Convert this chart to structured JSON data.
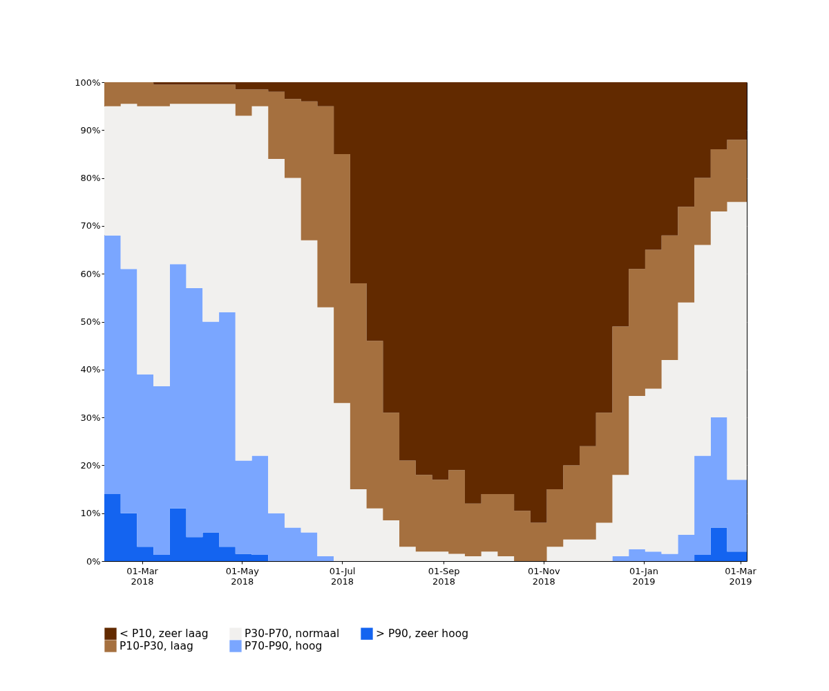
{
  "chart_data": {
    "type": "area",
    "stacked": true,
    "grid": true,
    "legend": "bottom",
    "x": [
      "2018-02-06",
      "2018-02-16",
      "2018-02-26",
      "2018-03-08",
      "2018-03-18",
      "2018-03-28",
      "2018-04-07",
      "2018-04-17",
      "2018-04-27",
      "2018-05-07",
      "2018-05-17",
      "2018-05-27",
      "2018-06-06",
      "2018-06-16",
      "2018-06-26",
      "2018-07-06",
      "2018-07-16",
      "2018-07-26",
      "2018-08-05",
      "2018-08-15",
      "2018-08-25",
      "2018-09-04",
      "2018-09-14",
      "2018-09-24",
      "2018-10-04",
      "2018-10-14",
      "2018-10-24",
      "2018-11-03",
      "2018-11-13",
      "2018-11-23",
      "2018-12-03",
      "2018-12-13",
      "2018-12-23",
      "2019-01-02",
      "2019-01-12",
      "2019-01-22",
      "2019-02-01",
      "2019-02-11",
      "2019-02-21",
      "2019-03-05"
    ],
    "xlim": [
      "2018-02-06",
      "2019-03-05"
    ],
    "xticks": [
      {
        "value": "2018-03-01",
        "label": "01-Mar\n2018"
      },
      {
        "value": "2018-05-01",
        "label": "01-May\n2018"
      },
      {
        "value": "2018-07-01",
        "label": "01-Jul\n2018"
      },
      {
        "value": "2018-09-01",
        "label": "01-Sep\n2018"
      },
      {
        "value": "2018-11-01",
        "label": "01-Nov\n2018"
      },
      {
        "value": "2019-01-01",
        "label": "01-Jan\n2019"
      },
      {
        "value": "2019-03-01",
        "label": "01-Mar\n2019"
      }
    ],
    "ylim": [
      0,
      100
    ],
    "yticks": [
      {
        "value": 0,
        "label": "0%"
      },
      {
        "value": 10,
        "label": "10%"
      },
      {
        "value": 20,
        "label": "20%"
      },
      {
        "value": 30,
        "label": "30%"
      },
      {
        "value": 40,
        "label": "40%"
      },
      {
        "value": 50,
        "label": "50%"
      },
      {
        "value": 60,
        "label": "60%"
      },
      {
        "value": 70,
        "label": "70%"
      },
      {
        "value": 80,
        "label": "80%"
      },
      {
        "value": 90,
        "label": "90%"
      },
      {
        "value": 100,
        "label": "100%"
      }
    ],
    "series": [
      {
        "name": "> P90, zeer hoog",
        "color": "#1464f0",
        "values": [
          14,
          10,
          3,
          1.3,
          11,
          5,
          6,
          3,
          1.5,
          1.3,
          0,
          0,
          0,
          0,
          0,
          0,
          0,
          0,
          0,
          0,
          0,
          0,
          0,
          0,
          0,
          0,
          0,
          0,
          0,
          0,
          0,
          0,
          0,
          0,
          0,
          0,
          1.3,
          7,
          2,
          0
        ]
      },
      {
        "name": "P70-P90, hoog",
        "color": "#7aa6ff",
        "values": [
          54,
          51,
          36,
          35.2,
          51,
          52,
          44,
          49,
          19.5,
          20.7,
          10,
          7,
          6,
          1,
          0,
          0,
          0,
          0,
          0,
          0,
          0,
          0,
          0,
          0,
          0,
          0,
          0,
          0,
          0,
          0,
          0,
          1,
          2.5,
          2,
          1.5,
          5.5,
          20.7,
          23,
          15,
          14
        ]
      },
      {
        "name": "P30-P70, normaal",
        "color": "#f1f0ee",
        "values": [
          27,
          34.5,
          56,
          58.5,
          33.5,
          38.5,
          45.5,
          43.5,
          72,
          73,
          74,
          73,
          61,
          52,
          33,
          15,
          11,
          8.5,
          3,
          2,
          2,
          1.5,
          1,
          2,
          1,
          0,
          0,
          3,
          4.5,
          4.5,
          8,
          17,
          32,
          34,
          40.5,
          48.5,
          44,
          43,
          58,
          61.5
        ]
      },
      {
        "name": "P10-P30, laag",
        "color": "#a5703f",
        "values": [
          5,
          4.5,
          5,
          4.5,
          4,
          4,
          4,
          4,
          5.5,
          3.5,
          14,
          16.5,
          29,
          42,
          52,
          43,
          35,
          22.5,
          18,
          16,
          15,
          17.5,
          11,
          12,
          13,
          10.5,
          8,
          12,
          15.5,
          19.5,
          23,
          31,
          26.5,
          29,
          26,
          20,
          14,
          13,
          13,
          15
        ]
      },
      {
        "name": "< P10, zeer laag",
        "color": "#622a00",
        "values": [
          0,
          0,
          0,
          0.5,
          0.5,
          0.5,
          0.5,
          0.5,
          1.5,
          1.5,
          2,
          3.5,
          4,
          5,
          15,
          42,
          54,
          69,
          79,
          82,
          83,
          81,
          88,
          86,
          86,
          89.5,
          92,
          85,
          80,
          76,
          69,
          51,
          39,
          35,
          32,
          26,
          20,
          14,
          12,
          9.5
        ]
      }
    ]
  }
}
